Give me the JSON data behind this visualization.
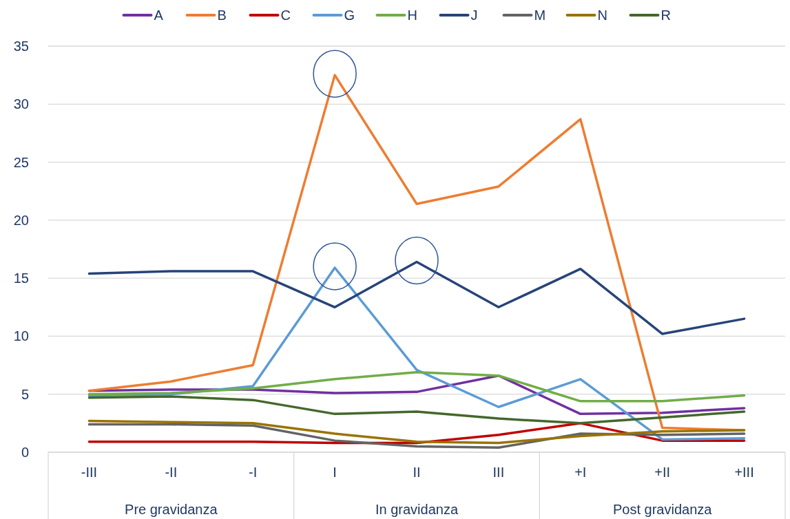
{
  "chart_data": {
    "type": "line",
    "categories": [
      "-III",
      "-II",
      "-I",
      "I",
      "II",
      "III",
      "+I",
      "+II",
      "+III"
    ],
    "series": [
      {
        "name": "A",
        "color": "#7030a0",
        "values": [
          5.3,
          5.4,
          5.4,
          5.1,
          5.2,
          6.6,
          3.3,
          3.4,
          3.8
        ]
      },
      {
        "name": "B",
        "color": "#ed7d31",
        "values": [
          5.3,
          6.1,
          7.5,
          32.5,
          21.4,
          22.9,
          28.7,
          2.1,
          1.9
        ]
      },
      {
        "name": "C",
        "color": "#c00000",
        "values": [
          0.9,
          0.9,
          0.9,
          0.8,
          0.8,
          1.5,
          2.5,
          1.0,
          1.0
        ]
      },
      {
        "name": "G",
        "color": "#5b9bd5",
        "values": [
          4.9,
          5.0,
          5.7,
          15.9,
          7.1,
          3.9,
          6.3,
          1.1,
          1.2
        ]
      },
      {
        "name": "H",
        "color": "#70ad47",
        "values": [
          5.0,
          5.1,
          5.5,
          6.3,
          6.9,
          6.6,
          4.4,
          4.4,
          4.9
        ]
      },
      {
        "name": "J",
        "color": "#264478",
        "values": [
          15.4,
          15.6,
          15.6,
          12.5,
          16.4,
          12.5,
          15.8,
          10.2,
          11.5
        ]
      },
      {
        "name": "M",
        "color": "#636363",
        "values": [
          2.4,
          2.4,
          2.3,
          1.0,
          0.5,
          0.4,
          1.6,
          1.5,
          1.6
        ]
      },
      {
        "name": "N",
        "color": "#997300",
        "values": [
          2.7,
          2.6,
          2.5,
          1.6,
          0.9,
          0.8,
          1.4,
          1.8,
          1.9
        ]
      },
      {
        "name": "R",
        "color": "#43682b",
        "values": [
          4.7,
          4.8,
          4.5,
          3.3,
          3.5,
          2.9,
          2.5,
          3.0,
          3.5
        ]
      }
    ],
    "ylim": [
      0,
      35
    ],
    "yticks": [
      0,
      5,
      10,
      15,
      20,
      25,
      30,
      35
    ],
    "grid": "y",
    "legend": "top",
    "marker": "none",
    "line_style": "solid",
    "annotations": [
      "Pre gravidanza",
      "In gravidanza",
      "Post gravidanza"
    ]
  }
}
